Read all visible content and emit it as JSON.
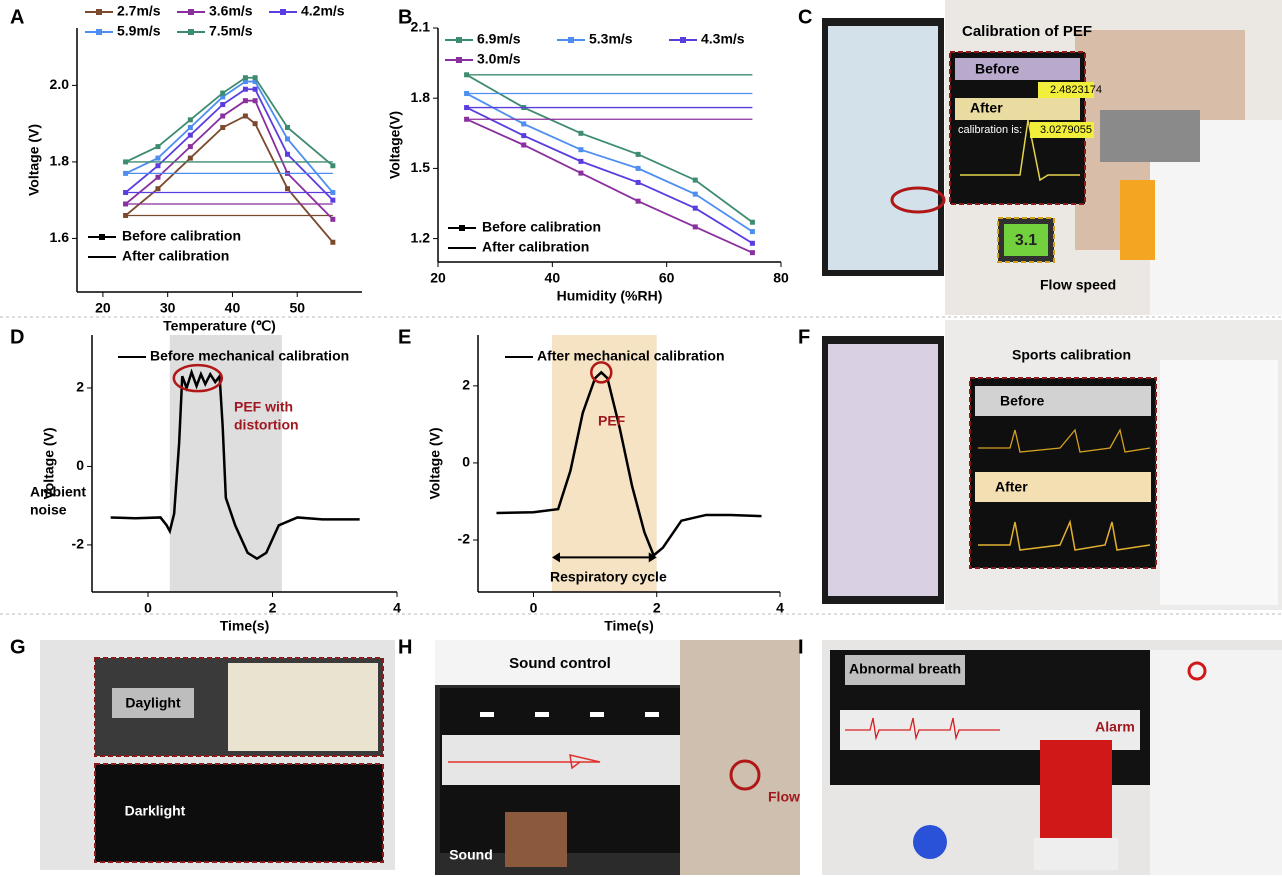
{
  "panels": [
    "A",
    "B",
    "C",
    "D",
    "E",
    "F",
    "G",
    "H",
    "I"
  ],
  "chart_data": [
    {
      "type": "line",
      "x": [
        23.5,
        28.5,
        33.5,
        38.5,
        42,
        43.5,
        48.5,
        55.5
      ],
      "xlim": [
        16,
        60
      ],
      "xticks": [
        20,
        30,
        40,
        50
      ],
      "ylim": [
        1.46,
        2.15
      ],
      "yticks": [
        1.6,
        1.8,
        {
          "value": 2,
          "label": "2.0"
        }
      ],
      "x_label": "Temperature (℃)",
      "y_label": "Voltage (V)",
      "line_styles": [
        "Before calibration",
        "After calibration"
      ],
      "series": [
        {
          "name": "2.7m/s",
          "color": "#7b4a2e",
          "values": [
            1.66,
            1.73,
            1.81,
            1.89,
            1.92,
            1.9,
            1.73,
            1.59
          ],
          "calibrated": 1.66
        },
        {
          "name": "3.6m/s",
          "color": "#8a2f9e",
          "values": [
            1.69,
            1.76,
            1.84,
            1.92,
            1.96,
            1.96,
            1.77,
            1.65
          ],
          "calibrated": 1.69
        },
        {
          "name": "4.2m/s",
          "color": "#5b3ce0",
          "values": [
            1.72,
            1.79,
            1.87,
            1.95,
            1.99,
            1.99,
            1.82,
            1.7
          ],
          "calibrated": 1.72
        },
        {
          "name": "5.9m/s",
          "color": "#4d8ef0",
          "values": [
            1.77,
            1.81,
            1.89,
            1.97,
            2.01,
            2.01,
            1.86,
            1.72
          ],
          "calibrated": 1.77
        },
        {
          "name": "7.5m/s",
          "color": "#3d8c6f",
          "values": [
            1.8,
            1.84,
            1.91,
            1.98,
            2.02,
            2.02,
            1.89,
            1.79
          ],
          "calibrated": 1.8
        }
      ]
    },
    {
      "type": "line",
      "x": [
        25,
        35,
        45,
        55,
        65,
        75
      ],
      "xlim": [
        20,
        80
      ],
      "xticks": [
        20,
        40,
        60,
        80
      ],
      "ylim": [
        1.1,
        2.1
      ],
      "yticks": [
        1.2,
        1.5,
        1.8,
        2.1
      ],
      "x_label": "Humidity (%RH)",
      "y_label": "Voltage(V)",
      "line_styles": [
        "Before calibration",
        "After calibration"
      ],
      "series": [
        {
          "name": "6.9m/s",
          "color": "#3d8c6f",
          "values": [
            1.9,
            1.76,
            1.65,
            1.56,
            1.45,
            1.27
          ],
          "calibrated": 1.9
        },
        {
          "name": "5.3m/s",
          "color": "#4d8ef0",
          "values": [
            1.82,
            1.69,
            1.58,
            1.5,
            1.39,
            1.23
          ],
          "calibrated": 1.82
        },
        {
          "name": "4.3m/s",
          "color": "#5b3ce0",
          "values": [
            1.76,
            1.64,
            1.53,
            1.44,
            1.33,
            1.18
          ],
          "calibrated": 1.76
        },
        {
          "name": "3.0m/s",
          "color": "#8a2f9e",
          "values": [
            1.71,
            1.6,
            1.48,
            1.36,
            1.25,
            1.14
          ],
          "calibrated": 1.71
        }
      ]
    },
    {
      "type": "line",
      "x": [
        -0.6,
        -0.2,
        0.2,
        0.3,
        0.35,
        0.42,
        0.5,
        0.55,
        0.62,
        0.7,
        0.78,
        0.85,
        0.92,
        1.0,
        1.08,
        1.15,
        1.2,
        1.25,
        1.4,
        1.6,
        1.75,
        1.9,
        2.1,
        2.4,
        2.8,
        3.4
      ],
      "xlim": [
        -0.9,
        4
      ],
      "xticks": [
        0,
        2,
        4
      ],
      "ylim": [
        -3.2,
        3.35
      ],
      "yticks": [
        -2,
        0,
        2
      ],
      "x_label": "Time(s)",
      "y_label": "Voltage (V)",
      "highlight": [
        0.35,
        2.15
      ],
      "highlight_color": "#dedede",
      "series": [
        {
          "name": "Before mechanical calibration",
          "color": "#000000",
          "values": [
            -1.3,
            -1.32,
            -1.3,
            -1.5,
            -1.65,
            -1.2,
            0.6,
            2.3,
            2.0,
            2.4,
            2.05,
            2.35,
            2.1,
            2.35,
            2.15,
            2.3,
            1.0,
            -0.8,
            -1.5,
            -2.2,
            -2.35,
            -2.2,
            -1.5,
            -1.3,
            -1.35,
            -1.35
          ]
        }
      ],
      "annotations": [
        {
          "text": "PEF with",
          "color": "#a01820"
        },
        {
          "text": "distortion",
          "color": "#a01820"
        },
        {
          "text": "Ambient",
          "color": "#000000"
        },
        {
          "text": "noise",
          "color": "#000000"
        }
      ]
    },
    {
      "type": "line",
      "x": [
        -0.6,
        0,
        0.4,
        0.6,
        0.8,
        1.0,
        1.1,
        1.2,
        1.4,
        1.6,
        1.8,
        1.95,
        2.1,
        2.4,
        2.8,
        3.2,
        3.7
      ],
      "xlim": [
        -0.9,
        4
      ],
      "xticks": [
        0,
        2,
        4
      ],
      "ylim": [
        -3.35,
        3.32
      ],
      "yticks": [
        -2,
        0,
        2
      ],
      "x_label": "Time(s)",
      "y_label": "Voltage (V)",
      "highlight": [
        0.3,
        2.0
      ],
      "highlight_color": "#f6e3c4",
      "series": [
        {
          "name": "After mechanical calibration",
          "color": "#000000",
          "values": [
            -1.3,
            -1.28,
            -1.2,
            -0.2,
            1.3,
            2.2,
            2.35,
            2.2,
            0.9,
            -0.6,
            -1.8,
            -2.4,
            -2.2,
            -1.5,
            -1.35,
            -1.35,
            -1.38
          ]
        }
      ],
      "annotations": [
        {
          "text": "PEF",
          "color": "#a01820"
        },
        {
          "text": "Respiratory cycle",
          "color": "#000000"
        }
      ]
    }
  ],
  "photos": {
    "C": {
      "title": "Calibration of PEF",
      "before": "Before",
      "after": "After",
      "readout_label": "calibration is:",
      "before_reading": "2.4823174",
      "after_reading": "3.0279055",
      "meter": "3.1",
      "caption": "Flow speed"
    },
    "F": {
      "title": "Sports calibration",
      "before": "Before",
      "after": "After"
    },
    "G": {
      "top": "Daylight",
      "bottom": "Darklight"
    },
    "H": {
      "title": "Sound control",
      "marker": "Flow",
      "device": "Sound"
    },
    "I": {
      "title": "Abnormal breath",
      "device": "Alarm"
    }
  }
}
